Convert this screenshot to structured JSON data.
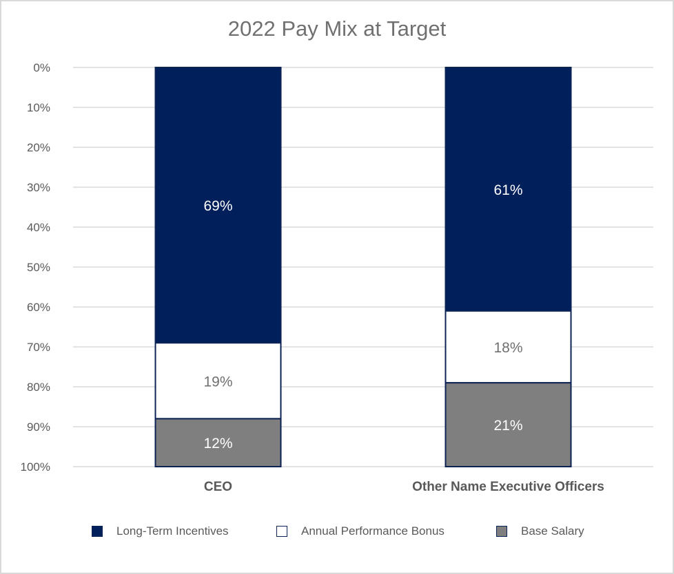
{
  "chart_data": {
    "type": "bar",
    "stacked": true,
    "title": "2022 Pay Mix at Target",
    "categories": [
      "CEO",
      "Other Name Executive Officers"
    ],
    "series": [
      {
        "name": "Long-Term Incentives",
        "values": [
          69,
          61
        ],
        "labels": [
          "69%",
          "61%"
        ],
        "color": "#001f5b",
        "label_color": "#ffffff"
      },
      {
        "name": "Annual Performance Bonus",
        "values": [
          19,
          18
        ],
        "labels": [
          "19%",
          "18%"
        ],
        "color": "#ffffff",
        "label_color": "#707070"
      },
      {
        "name": "Base Salary",
        "values": [
          12,
          21
        ],
        "labels": [
          "12%",
          "21%"
        ],
        "color": "#7f7f7f",
        "label_color": "#ffffff"
      }
    ],
    "y_ticks": [
      "0%",
      "10%",
      "20%",
      "30%",
      "40%",
      "50%",
      "60%",
      "70%",
      "80%",
      "90%",
      "100%"
    ],
    "ylim": [
      0,
      100
    ],
    "y_axis_inverted": true,
    "grid": true,
    "legend_position": "bottom"
  },
  "legend": [
    {
      "label": "Long-Term Incentives",
      "color": "#001f5b"
    },
    {
      "label": "Annual Performance Bonus",
      "color": "#ffffff"
    },
    {
      "label": "Base Salary",
      "color": "#7f7f7f"
    }
  ]
}
